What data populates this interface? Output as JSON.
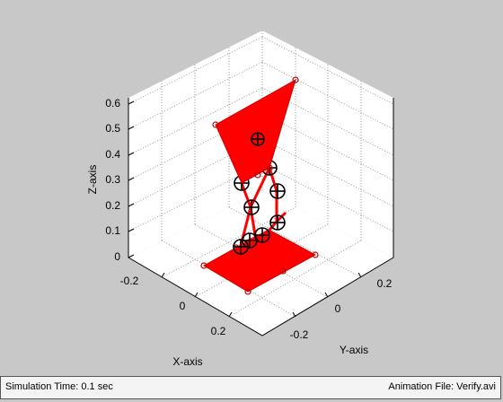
{
  "plot": {
    "z_ticks": [
      "0",
      "0.1",
      "0.2",
      "0.3",
      "0.4",
      "0.5",
      "0.6"
    ],
    "x_ticks": [
      "-0.2",
      "0",
      "0.2"
    ],
    "y_ticks": [
      "-0.2",
      "0",
      "0.2"
    ],
    "xlabel": "X-axis",
    "ylabel": "Y-axis",
    "zlabel": "Z-axis",
    "colors": {
      "platform": "#ff0000",
      "joint_marker": "#000000",
      "figure_bg": "#c8c8c8"
    }
  },
  "status_bar": {
    "simulation_time": "Simulation Time: 0.1 sec",
    "animation_file": "Animation File: Verify.avi"
  }
}
